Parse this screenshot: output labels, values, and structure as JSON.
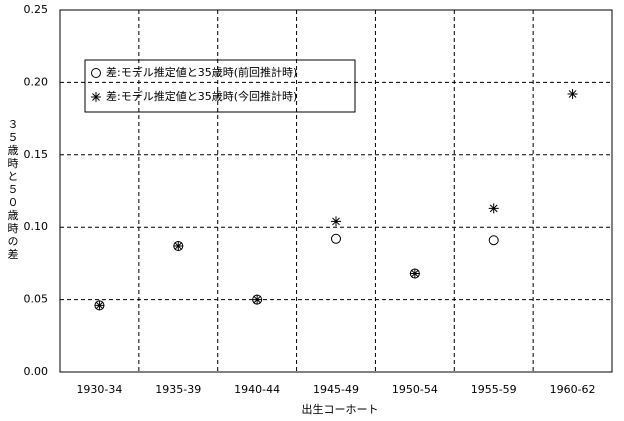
{
  "chart_data": {
    "type": "scatter",
    "xlabel": "出生コーホート",
    "ylabel": "３５歳時と５０歳時の差",
    "categories": [
      "1930-34",
      "1935-39",
      "1940-44",
      "1945-49",
      "1950-54",
      "1955-59",
      "1960-62"
    ],
    "series": [
      {
        "name": "差:モデル推定値と35歳時(前回推計時)",
        "marker": "circle",
        "color": "#000000",
        "values": [
          0.046,
          0.087,
          0.05,
          0.092,
          0.068,
          0.091,
          null
        ]
      },
      {
        "name": "差:モデル推定値と35歳時(今回推計時)",
        "marker": "asterisk",
        "color": "#000000",
        "values": [
          0.046,
          0.087,
          0.05,
          0.104,
          0.068,
          0.113,
          0.192
        ]
      }
    ],
    "ylim": [
      0,
      0.25
    ],
    "yticks": [
      {
        "value": 0,
        "label": "0.00"
      },
      0.05,
      {
        "value": 0.1,
        "label": "0.10"
      },
      0.15,
      {
        "value": 0.2,
        "label": "0.20"
      },
      0.25
    ],
    "grid": true
  }
}
